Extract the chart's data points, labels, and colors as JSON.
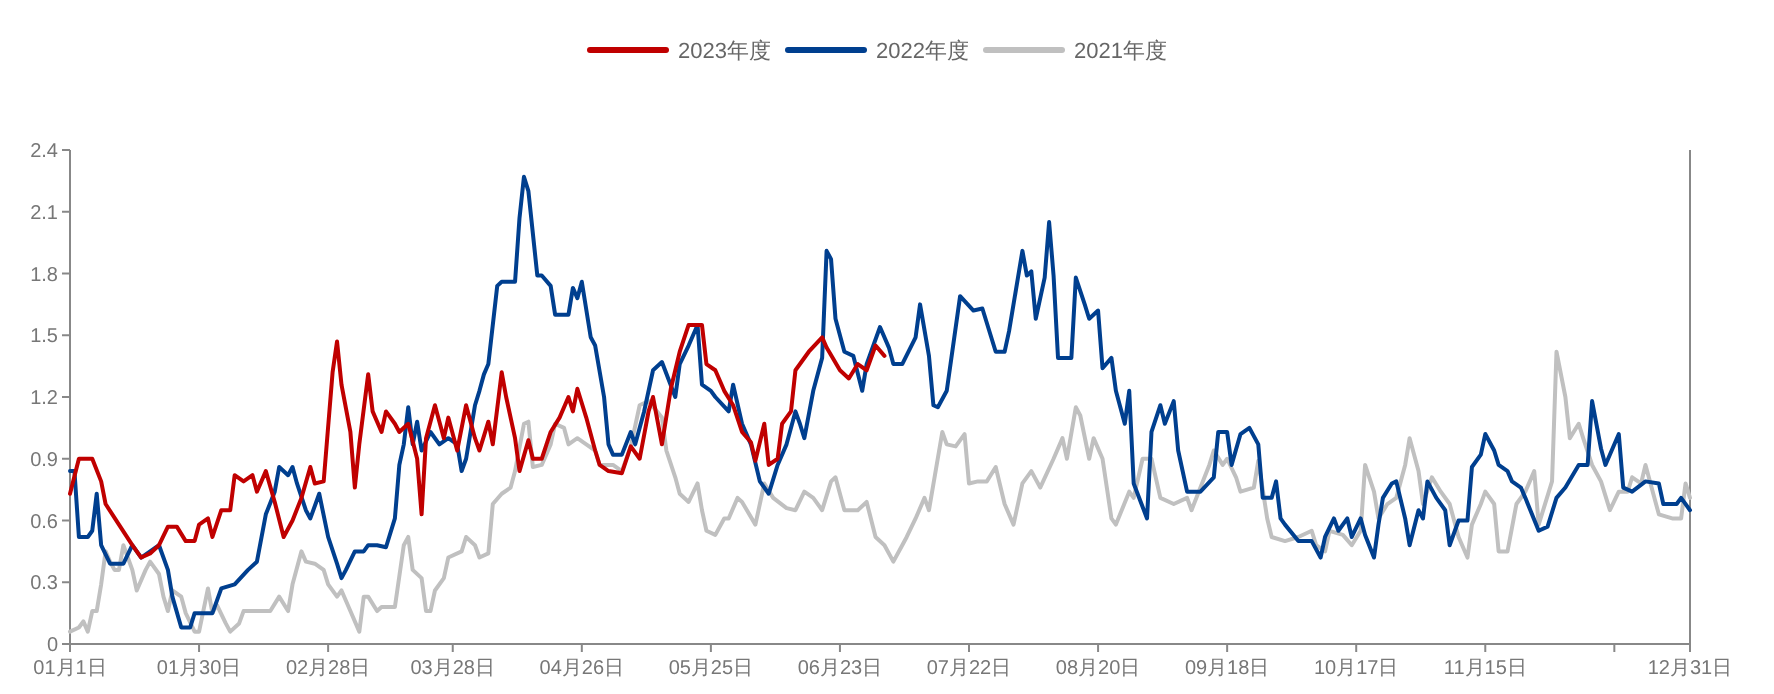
{
  "chart_data": {
    "type": "line",
    "legend": "top",
    "xlim": [
      "--01-01",
      "--12-31"
    ],
    "xticks": [
      {
        "value": "--01-01",
        "label": "01月1日"
      },
      {
        "value": "--01-30",
        "label": "01月30日"
      },
      {
        "value": "--02-28",
        "label": "02月28日"
      },
      {
        "value": "--03-28",
        "label": "03月28日"
      },
      {
        "value": "--04-26",
        "label": "04月26日"
      },
      {
        "value": "--05-25",
        "label": "05月25日"
      },
      {
        "value": "--06-23",
        "label": "06月23日"
      },
      {
        "value": "--07-22",
        "label": "07月22日"
      },
      {
        "value": "--08-20",
        "label": "08月20日"
      },
      {
        "value": "--09-18",
        "label": "09月18日"
      },
      {
        "value": "--10-17",
        "label": "10月17日"
      },
      {
        "value": "--11-15",
        "label": "11月15日"
      },
      {
        "value": "--12-14",
        "label": null
      },
      {
        "value": "--12-31",
        "label": "12月31日"
      }
    ],
    "ylim": [
      0,
      2.4
    ],
    "yticks": [
      0,
      0.3,
      0.6,
      0.9,
      1.2,
      1.5,
      1.8,
      2.1,
      2.4
    ],
    "series": [
      {
        "name": "2023年度",
        "color": "#c00000",
        "x": [
          "--01-01",
          "--01-03",
          "--01-06",
          "--01-08",
          "--01-09",
          "--01-12",
          "--01-15",
          "--01-17",
          "--01-19",
          "--01-21",
          "--01-23",
          "--01-25",
          "--01-27",
          "--01-29",
          "--01-30",
          "--02-01",
          "--02-02",
          "--02-04",
          "--02-06",
          "--02-07",
          "--02-09",
          "--02-11",
          "--02-12",
          "--02-14",
          "--02-16",
          "--02-18",
          "--02-20",
          "--02-22",
          "--02-24",
          "--02-25",
          "--02-27",
          "--03-01",
          "--03-02",
          "--03-03",
          "--03-05",
          "--03-06",
          "--03-07",
          "--03-09",
          "--03-10",
          "--03-12",
          "--03-13",
          "--03-15",
          "--03-16",
          "--03-18",
          "--03-20",
          "--03-21",
          "--03-22",
          "--03-24",
          "--03-26",
          "--03-27",
          "--03-29",
          "--03-31",
          "--04-02",
          "--04-03",
          "--04-05",
          "--04-06",
          "--04-08",
          "--04-09",
          "--04-11",
          "--04-12",
          "--04-14",
          "--04-15",
          "--04-17",
          "--04-19",
          "--04-21",
          "--04-23",
          "--04-24",
          "--04-25",
          "--04-27",
          "--04-29",
          "--04-30",
          "--05-02",
          "--05-05",
          "--05-07",
          "--05-09",
          "--05-11",
          "--05-12",
          "--05-14",
          "--05-16",
          "--05-18",
          "--05-20",
          "--05-23",
          "--05-24",
          "--05-26",
          "--05-28",
          "--05-30",
          "--06-01",
          "--06-03",
          "--06-04",
          "--06-06",
          "--06-07",
          "--06-09",
          "--06-10",
          "--06-12",
          "--06-13",
          "--06-16",
          "--06-19",
          "--06-20",
          "--06-23",
          "--06-25",
          "--06-27",
          "--06-29",
          "--07-01",
          "--07-03"
        ],
        "values": [
          0.73,
          0.9,
          0.9,
          0.79,
          0.68,
          0.58,
          0.48,
          0.42,
          0.44,
          0.48,
          0.57,
          0.57,
          0.5,
          0.5,
          0.58,
          0.61,
          0.52,
          0.65,
          0.65,
          0.82,
          0.79,
          0.82,
          0.74,
          0.84,
          0.69,
          0.52,
          0.6,
          0.71,
          0.86,
          0.78,
          0.79,
          1.32,
          1.47,
          1.26,
          1.03,
          0.76,
          0.97,
          1.31,
          1.13,
          1.03,
          1.13,
          1.07,
          1.03,
          1.07,
          0.9,
          0.63,
          1.0,
          1.16,
          1.0,
          1.1,
          0.94,
          1.16,
          1.0,
          0.94,
          1.08,
          0.97,
          1.32,
          1.2,
          1.0,
          0.84,
          0.99,
          0.9,
          0.9,
          1.03,
          1.1,
          1.2,
          1.13,
          1.24,
          1.1,
          0.94,
          0.87,
          0.84,
          0.83,
          0.96,
          0.9,
          1.13,
          1.2,
          0.97,
          1.24,
          1.42,
          1.55,
          1.55,
          1.36,
          1.33,
          1.23,
          1.16,
          1.03,
          0.98,
          0.89,
          1.07,
          0.87,
          0.9,
          1.07,
          1.13,
          1.33,
          1.42,
          1.49,
          1.44,
          1.33,
          1.29,
          1.36,
          1.33,
          1.45,
          1.4
        ]
      },
      {
        "name": "2022年度",
        "color": "#003f8f",
        "x": [
          "--01-01",
          "--01-02",
          "--01-03",
          "--01-05",
          "--01-06",
          "--01-07",
          "--01-08",
          "--01-10",
          "--01-13",
          "--01-15",
          "--01-17",
          "--01-19",
          "--01-21",
          "--01-23",
          "--01-24",
          "--01-26",
          "--01-28",
          "--01-29",
          "--02-02",
          "--02-04",
          "--02-07",
          "--02-10",
          "--02-12",
          "--02-14",
          "--02-16",
          "--02-17",
          "--02-19",
          "--02-20",
          "--02-21",
          "--02-23",
          "--02-24",
          "--02-26",
          "--02-28",
          "--03-02",
          "--03-03",
          "--03-04",
          "--03-06",
          "--03-08",
          "--03-09",
          "--03-11",
          "--03-13",
          "--03-15",
          "--03-16",
          "--03-17",
          "--03-18",
          "--03-19",
          "--03-20",
          "--03-21",
          "--03-23",
          "--03-25",
          "--03-27",
          "--03-29",
          "--03-30",
          "--03-31",
          "--04-02",
          "--04-03",
          "--04-04",
          "--04-05",
          "--04-07",
          "--04-08",
          "--04-11",
          "--04-12",
          "--04-13",
          "--04-14",
          "--04-16",
          "--04-17",
          "--04-19",
          "--04-20",
          "--04-23",
          "--04-24",
          "--04-25",
          "--04-26",
          "--04-28",
          "--04-29",
          "--05-01",
          "--05-02",
          "--05-03",
          "--05-05",
          "--05-07",
          "--05-08",
          "--05-10",
          "--05-12",
          "--05-14",
          "--05-17",
          "--05-18",
          "--05-20",
          "--05-22",
          "--05-23",
          "--05-25",
          "--05-26",
          "--05-29",
          "--05-30",
          "--06-01",
          "--06-03",
          "--06-05",
          "--06-07",
          "--06-09",
          "--06-11",
          "--06-13",
          "--06-14",
          "--06-15",
          "--06-17",
          "--06-19",
          "--06-20",
          "--06-21",
          "--06-22",
          "--06-24",
          "--06-26",
          "--06-28",
          "--06-29",
          "--07-02",
          "--07-04",
          "--07-05",
          "--07-07",
          "--07-10",
          "--07-11",
          "--07-13",
          "--07-14",
          "--07-15",
          "--07-17",
          "--07-20",
          "--07-23",
          "--07-25",
          "--07-28",
          "--07-30",
          "--07-31",
          "--08-03",
          "--08-04",
          "--08-05",
          "--08-06",
          "--08-08",
          "--08-09",
          "--08-10",
          "--08-11",
          "--08-14",
          "--08-15",
          "--08-17",
          "--08-18",
          "--08-20",
          "--08-21",
          "--08-23",
          "--08-24",
          "--08-26",
          "--08-27",
          "--08-28",
          "--08-31",
          "--09-01",
          "--09-03",
          "--09-04",
          "--09-06",
          "--09-07",
          "--09-09",
          "--09-12",
          "--09-15",
          "--09-16",
          "--09-18",
          "--09-19",
          "--09-21",
          "--09-23",
          "--09-25",
          "--09-26",
          "--09-28",
          "--09-29",
          "--09-30",
          "--10-01",
          "--10-04",
          "--10-07",
          "--10-09",
          "--10-10",
          "--10-12",
          "--10-13",
          "--10-15",
          "--10-16",
          "--10-18",
          "--10-19",
          "--10-21",
          "--10-22",
          "--10-23",
          "--10-25",
          "--10-26",
          "--10-28",
          "--10-29",
          "--10-31",
          "--11-01",
          "--11-02",
          "--11-04",
          "--11-06",
          "--11-07",
          "--11-09",
          "--11-11",
          "--11-12",
          "--11-14",
          "--11-15",
          "--11-17",
          "--11-18",
          "--11-20",
          "--11-21",
          "--11-23",
          "--11-24",
          "--11-27",
          "--11-29",
          "--12-01",
          "--12-03",
          "--12-06",
          "--12-08",
          "--12-09",
          "--12-11",
          "--12-12",
          "--12-15",
          "--12-16",
          "--12-18",
          "--12-21",
          "--12-24",
          "--12-25",
          "--12-28",
          "--12-29",
          "--12-31"
        ],
        "values": [
          0.84,
          0.84,
          0.52,
          0.52,
          0.55,
          0.73,
          0.48,
          0.39,
          0.39,
          0.48,
          0.42,
          0.45,
          0.48,
          0.36,
          0.23,
          0.08,
          0.08,
          0.15,
          0.15,
          0.27,
          0.29,
          0.36,
          0.4,
          0.63,
          0.74,
          0.86,
          0.82,
          0.86,
          0.78,
          0.65,
          0.61,
          0.73,
          0.52,
          0.39,
          0.32,
          0.36,
          0.45,
          0.45,
          0.48,
          0.48,
          0.47,
          0.61,
          0.87,
          0.97,
          1.15,
          0.97,
          1.08,
          0.94,
          1.03,
          0.97,
          1.0,
          0.97,
          0.84,
          0.9,
          1.16,
          1.23,
          1.31,
          1.36,
          1.74,
          1.76,
          1.76,
          2.07,
          2.27,
          2.2,
          1.79,
          1.79,
          1.74,
          1.6,
          1.6,
          1.73,
          1.68,
          1.76,
          1.49,
          1.45,
          1.2,
          0.97,
          0.92,
          0.92,
          1.03,
          0.97,
          1.13,
          1.33,
          1.37,
          1.2,
          1.36,
          1.45,
          1.55,
          1.26,
          1.23,
          1.2,
          1.13,
          1.26,
          1.07,
          0.97,
          0.79,
          0.73,
          0.87,
          0.97,
          1.13,
          1.07,
          1.0,
          1.23,
          1.39,
          1.91,
          1.87,
          1.58,
          1.42,
          1.4,
          1.23,
          1.36,
          1.54,
          1.44,
          1.36,
          1.36,
          1.49,
          1.65,
          1.4,
          1.16,
          1.15,
          1.23,
          1.69,
          1.62,
          1.63,
          1.42,
          1.42,
          1.52,
          1.91,
          1.79,
          1.81,
          1.58,
          1.78,
          2.05,
          1.79,
          1.39,
          1.39,
          1.78,
          1.65,
          1.58,
          1.62,
          1.34,
          1.39,
          1.23,
          1.07,
          1.23,
          0.78,
          0.61,
          1.03,
          1.16,
          1.07,
          1.18,
          0.94,
          0.74,
          0.74,
          0.81,
          1.03,
          1.03,
          0.87,
          1.02,
          1.05,
          0.97,
          0.71,
          0.71,
          0.79,
          0.61,
          0.58,
          0.5,
          0.5,
          0.42,
          0.52,
          0.61,
          0.55,
          0.61,
          0.52,
          0.61,
          0.53,
          0.42,
          0.58,
          0.71,
          0.78,
          0.79,
          0.61,
          0.48,
          0.65,
          0.61,
          0.79,
          0.71,
          0.65,
          0.48,
          0.6,
          0.6,
          0.86,
          0.92,
          1.02,
          0.94,
          0.87,
          0.84,
          0.79,
          0.76,
          0.71,
          0.55,
          0.57,
          0.71,
          0.76,
          0.87,
          0.87,
          1.18,
          0.95,
          0.87,
          1.02,
          0.76,
          0.74,
          0.79,
          0.78,
          0.68,
          0.68,
          0.71,
          0.65
        ]
      },
      {
        "name": "2021年度",
        "color": "#c0c0c0",
        "x": [
          "--01-01",
          "--01-03",
          "--01-04",
          "--01-05",
          "--01-06",
          "--01-07",
          "--01-08",
          "--01-09",
          "--01-10",
          "--01-11",
          "--01-12",
          "--01-13",
          "--01-15",
          "--01-16",
          "--01-18",
          "--01-19",
          "--01-21",
          "--01-22",
          "--01-23",
          "--01-24",
          "--01-26",
          "--01-27",
          "--01-29",
          "--01-30",
          "--02-01",
          "--02-02",
          "--02-03",
          "--02-05",
          "--02-06",
          "--02-08",
          "--02-09",
          "--02-15",
          "--02-17",
          "--02-19",
          "--02-20",
          "--02-22",
          "--02-23",
          "--02-25",
          "--02-27",
          "--02-28",
          "--03-02",
          "--03-03",
          "--03-05",
          "--03-07",
          "--03-08",
          "--03-09",
          "--03-11",
          "--03-12",
          "--03-15",
          "--03-17",
          "--03-18",
          "--03-19",
          "--03-21",
          "--03-22",
          "--03-23",
          "--03-24",
          "--03-26",
          "--03-27",
          "--03-30",
          "--03-31",
          "--04-02",
          "--04-03",
          "--04-05",
          "--04-06",
          "--04-08",
          "--04-10",
          "--04-11",
          "--04-13",
          "--04-14",
          "--04-15",
          "--04-17",
          "--04-19",
          "--04-20",
          "--04-22",
          "--04-23",
          "--04-25",
          "--04-27",
          "--04-29",
          "--04-30",
          "--05-03",
          "--05-05",
          "--05-07",
          "--05-09",
          "--05-11",
          "--05-14",
          "--05-15",
          "--05-17",
          "--05-18",
          "--05-20",
          "--05-22",
          "--05-23",
          "--05-24",
          "--05-26",
          "--05-28",
          "--05-29",
          "--05-31",
          "--06-01",
          "--06-04",
          "--06-06",
          "--06-08",
          "--06-11",
          "--06-13",
          "--06-15",
          "--06-17",
          "--06-19",
          "--06-21",
          "--06-22",
          "--06-24",
          "--06-27",
          "--06-29",
          "--07-01",
          "--07-03",
          "--07-05",
          "--07-07",
          "--07-08",
          "--07-10",
          "--07-12",
          "--07-13",
          "--07-16",
          "--07-17",
          "--07-19",
          "--07-21",
          "--07-22",
          "--07-24",
          "--07-26",
          "--07-28",
          "--07-30",
          "--08-01",
          "--08-03",
          "--08-05",
          "--08-07",
          "--08-10",
          "--08-12",
          "--08-13",
          "--08-15",
          "--08-16",
          "--08-18",
          "--08-19",
          "--08-21",
          "--08-23",
          "--08-24",
          "--08-27",
          "--08-28",
          "--08-30",
          "--09-01",
          "--09-03",
          "--09-06",
          "--09-09",
          "--09-10",
          "--09-12",
          "--09-14",
          "--09-15",
          "--09-17",
          "--09-18",
          "--09-20",
          "--09-21",
          "--09-24",
          "--09-25",
          "--09-27",
          "--09-28",
          "--10-01",
          "--10-04",
          "--10-07",
          "--10-08",
          "--10-10",
          "--10-11",
          "--10-14",
          "--10-16",
          "--10-18",
          "--10-19",
          "--10-21",
          "--10-22",
          "--10-24",
          "--10-26",
          "--10-28",
          "--10-29",
          "--10-31",
          "--11-01",
          "--11-03",
          "--11-05",
          "--11-07",
          "--11-09",
          "--11-11",
          "--11-12",
          "--11-14",
          "--11-15",
          "--11-17",
          "--11-18",
          "--11-20",
          "--11-22",
          "--11-24",
          "--11-26",
          "--11-27",
          "--11-30",
          "--12-01",
          "--12-03",
          "--12-04",
          "--12-06",
          "--12-07",
          "--12-09",
          "--12-11",
          "--12-13",
          "--12-15",
          "--12-17",
          "--12-18",
          "--12-20",
          "--12-21",
          "--12-24",
          "--12-27",
          "--12-29",
          "--12-30",
          "--12-31"
        ],
        "values": [
          0.06,
          0.08,
          0.11,
          0.06,
          0.16,
          0.16,
          0.29,
          0.45,
          0.4,
          0.36,
          0.36,
          0.48,
          0.36,
          0.26,
          0.36,
          0.4,
          0.34,
          0.23,
          0.16,
          0.26,
          0.23,
          0.15,
          0.06,
          0.06,
          0.27,
          0.15,
          0.19,
          0.1,
          0.06,
          0.1,
          0.16,
          0.16,
          0.23,
          0.16,
          0.29,
          0.45,
          0.4,
          0.39,
          0.36,
          0.29,
          0.23,
          0.26,
          0.16,
          0.06,
          0.23,
          0.23,
          0.16,
          0.18,
          0.18,
          0.48,
          0.52,
          0.36,
          0.32,
          0.16,
          0.16,
          0.26,
          0.32,
          0.42,
          0.45,
          0.52,
          0.48,
          0.42,
          0.44,
          0.68,
          0.73,
          0.76,
          0.84,
          1.07,
          1.08,
          0.86,
          0.87,
          0.97,
          1.07,
          1.05,
          0.97,
          1.0,
          0.97,
          0.94,
          0.87,
          0.87,
          0.84,
          0.96,
          1.16,
          1.18,
          1.1,
          0.94,
          0.81,
          0.73,
          0.69,
          0.78,
          0.65,
          0.55,
          0.53,
          0.61,
          0.61,
          0.71,
          0.69,
          0.58,
          0.78,
          0.71,
          0.66,
          0.65,
          0.74,
          0.71,
          0.65,
          0.79,
          0.81,
          0.65,
          0.65,
          0.69,
          0.52,
          0.48,
          0.4,
          0.48,
          0.52,
          0.61,
          0.71,
          0.65,
          1.03,
          0.97,
          0.96,
          1.02,
          0.78,
          0.79,
          0.79,
          0.86,
          0.68,
          0.58,
          0.78,
          0.84,
          0.76,
          0.9,
          1.0,
          0.9,
          1.15,
          1.11,
          0.9,
          1.0,
          0.9,
          0.61,
          0.58,
          0.74,
          0.71,
          0.9,
          0.9,
          0.71,
          0.68,
          0.71,
          0.65,
          0.76,
          0.87,
          0.94,
          0.87,
          0.9,
          0.81,
          0.74,
          0.76,
          0.89,
          0.61,
          0.52,
          0.5,
          0.52,
          0.55,
          0.48,
          0.45,
          0.55,
          0.53,
          0.48,
          0.55,
          0.87,
          0.74,
          0.61,
          0.68,
          0.71,
          0.87,
          1.0,
          0.84,
          0.68,
          0.81,
          0.74,
          0.68,
          0.52,
          0.42,
          0.58,
          0.68,
          0.74,
          0.68,
          0.45,
          0.45,
          0.68,
          0.74,
          0.84,
          0.58,
          0.79,
          1.42,
          1.2,
          1.0,
          1.07,
          1.0,
          0.87,
          0.79,
          0.65,
          0.74,
          0.74,
          0.81,
          0.78,
          0.87,
          0.63,
          0.61,
          0.61,
          0.78,
          0.71
        ]
      }
    ]
  }
}
